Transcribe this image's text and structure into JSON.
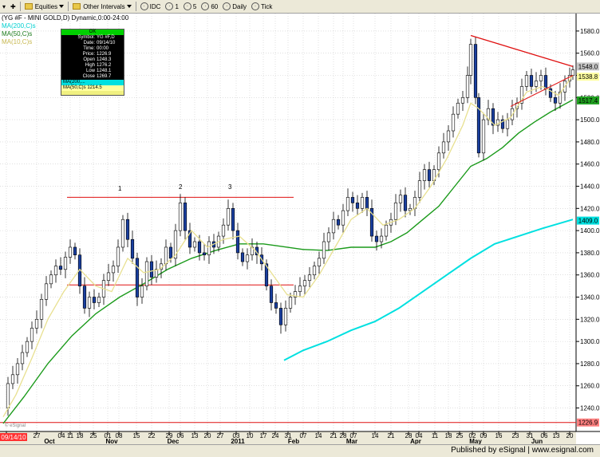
{
  "toolbar": {
    "symbol_label": "Equities",
    "interval_label": "Other Intervals",
    "buttons": [
      "IDC",
      "1",
      "5",
      "60",
      "Daily",
      "Tick"
    ]
  },
  "chart": {
    "title": "(YG #F - MINI GOLD,D) Dynamic,0:00-24:00",
    "ma_labels": [
      {
        "text": "MA(200,C)s",
        "color": "#00e0e0"
      },
      {
        "text": "MA(50,C)s",
        "color": "#1a8a1a"
      },
      {
        "text": "MA(10,C)s",
        "color": "#d8d070"
      }
    ],
    "annotations": [
      "1",
      "2",
      "3"
    ],
    "copyright": "© eSignal",
    "badges": [
      {
        "text": "1548.0",
        "value": 1548.0,
        "color": "#c8c8c8"
      },
      {
        "text": "1538.8",
        "value": 1538.8,
        "color": "#ffffa0"
      },
      {
        "text": "1517.4",
        "value": 1517.4,
        "color": "#20a020"
      },
      {
        "text": "1409.0",
        "value": 1409.0,
        "color": "#00e0e0"
      },
      {
        "text": "1226.9",
        "value": 1226.9,
        "color": "#ff8080"
      }
    ],
    "date_badge": "09/14/10"
  },
  "infobox": {
    "ok": "OK",
    "rows": [
      {
        "k": "Symbol:",
        "v": "YG #F,D"
      },
      {
        "k": "Date:",
        "v": "09/14/10"
      },
      {
        "k": "Time:",
        "v": "00:00"
      },
      {
        "k": "Price:",
        "v": "1226.9"
      },
      {
        "k": "Open",
        "v": "1248.3"
      },
      {
        "k": "High",
        "v": "1276.2"
      },
      {
        "k": "Low",
        "v": "1248.1"
      },
      {
        "k": "Close",
        "v": "1269.7"
      }
    ],
    "cyan_row": "MA(200,...",
    "yellow_row": "MA(50,C)s   1214.5"
  },
  "status": {
    "published": "Published by eSignal",
    "url": "www.esignal.com"
  },
  "chart_data": {
    "type": "candlestick",
    "y_ticks": [
      1240,
      1260,
      1280,
      1300,
      1320,
      1340,
      1360,
      1380,
      1400,
      1420,
      1440,
      1460,
      1480,
      1500,
      1520,
      1540,
      1560,
      1580
    ],
    "ylim": [
      1226,
      1590
    ],
    "x_ticks": [
      {
        "label": "20",
        "x": 8
      },
      {
        "label": "27",
        "x": 46
      },
      {
        "label": "04",
        "x": 77
      },
      {
        "label": "11",
        "x": 88
      },
      {
        "label": "18",
        "x": 100
      },
      {
        "label": "25",
        "x": 117
      },
      {
        "label": "01",
        "x": 135
      },
      {
        "label": "08",
        "x": 149
      },
      {
        "label": "15",
        "x": 171
      },
      {
        "label": "22",
        "x": 190
      },
      {
        "label": "29",
        "x": 212
      },
      {
        "label": "06",
        "x": 226
      },
      {
        "label": "13",
        "x": 244
      },
      {
        "label": "20",
        "x": 260
      },
      {
        "label": "27",
        "x": 276
      },
      {
        "label": "03",
        "x": 296
      },
      {
        "label": "10",
        "x": 313
      },
      {
        "label": "17",
        "x": 330
      },
      {
        "label": "24",
        "x": 345
      },
      {
        "label": "31",
        "x": 361
      },
      {
        "label": "07",
        "x": 380
      },
      {
        "label": "14",
        "x": 399
      },
      {
        "label": "21",
        "x": 418
      },
      {
        "label": "28",
        "x": 430
      },
      {
        "label": "07",
        "x": 443
      },
      {
        "label": "14",
        "x": 470
      },
      {
        "label": "21",
        "x": 490
      },
      {
        "label": "28",
        "x": 512
      },
      {
        "label": "04",
        "x": 525
      },
      {
        "label": "11",
        "x": 545
      },
      {
        "label": "18",
        "x": 562
      },
      {
        "label": "25",
        "x": 576
      },
      {
        "label": "02",
        "x": 592
      },
      {
        "label": "09",
        "x": 606
      },
      {
        "label": "16",
        "x": 625
      },
      {
        "label": "23",
        "x": 646
      },
      {
        "label": "31",
        "x": 664
      },
      {
        "label": "06",
        "x": 682
      },
      {
        "label": "13",
        "x": 697
      },
      {
        "label": "20",
        "x": 714
      }
    ],
    "months": [
      {
        "label": "Oct",
        "x": 62
      },
      {
        "label": "Nov",
        "x": 140
      },
      {
        "label": "Dec",
        "x": 217
      },
      {
        "label": "2011",
        "x": 298
      },
      {
        "label": "Feb",
        "x": 368
      },
      {
        "label": "Mar",
        "x": 441
      },
      {
        "label": "Apr",
        "x": 521
      },
      {
        "label": "May",
        "x": 596
      },
      {
        "label": "Jun",
        "x": 673
      }
    ],
    "price_path": [
      [
        4,
        1240
      ],
      [
        10,
        1262
      ],
      [
        16,
        1270
      ],
      [
        22,
        1280
      ],
      [
        28,
        1290
      ],
      [
        34,
        1300
      ],
      [
        40,
        1312
      ],
      [
        46,
        1320
      ],
      [
        52,
        1338
      ],
      [
        58,
        1352
      ],
      [
        64,
        1360
      ],
      [
        70,
        1368
      ],
      [
        76,
        1365
      ],
      [
        82,
        1376
      ],
      [
        88,
        1385
      ],
      [
        94,
        1378
      ],
      [
        100,
        1350
      ],
      [
        106,
        1330
      ],
      [
        112,
        1340
      ],
      [
        118,
        1335
      ],
      [
        124,
        1340
      ],
      [
        130,
        1355
      ],
      [
        136,
        1362
      ],
      [
        142,
        1368
      ],
      [
        148,
        1385
      ],
      [
        154,
        1410
      ],
      [
        160,
        1392
      ],
      [
        166,
        1375
      ],
      [
        172,
        1340
      ],
      [
        178,
        1350
      ],
      [
        184,
        1372
      ],
      [
        190,
        1358
      ],
      [
        196,
        1365
      ],
      [
        202,
        1370
      ],
      [
        208,
        1385
      ],
      [
        214,
        1375
      ],
      [
        220,
        1400
      ],
      [
        226,
        1425
      ],
      [
        232,
        1400
      ],
      [
        238,
        1385
      ],
      [
        244,
        1390
      ],
      [
        250,
        1380
      ],
      [
        256,
        1378
      ],
      [
        262,
        1390
      ],
      [
        268,
        1385
      ],
      [
        274,
        1395
      ],
      [
        280,
        1405
      ],
      [
        286,
        1420
      ],
      [
        292,
        1400
      ],
      [
        298,
        1380
      ],
      [
        304,
        1372
      ],
      [
        310,
        1378
      ],
      [
        316,
        1385
      ],
      [
        322,
        1378
      ],
      [
        328,
        1370
      ],
      [
        334,
        1350
      ],
      [
        340,
        1335
      ],
      [
        346,
        1330
      ],
      [
        352,
        1315
      ],
      [
        358,
        1330
      ],
      [
        364,
        1340
      ],
      [
        370,
        1345
      ],
      [
        376,
        1350
      ],
      [
        382,
        1355
      ],
      [
        388,
        1360
      ],
      [
        394,
        1368
      ],
      [
        400,
        1375
      ],
      [
        406,
        1390
      ],
      [
        412,
        1398
      ],
      [
        418,
        1410
      ],
      [
        424,
        1405
      ],
      [
        430,
        1418
      ],
      [
        436,
        1430
      ],
      [
        442,
        1425
      ],
      [
        448,
        1420
      ],
      [
        454,
        1430
      ],
      [
        460,
        1420
      ],
      [
        466,
        1395
      ],
      [
        472,
        1390
      ],
      [
        478,
        1395
      ],
      [
        484,
        1405
      ],
      [
        490,
        1410
      ],
      [
        496,
        1425
      ],
      [
        502,
        1432
      ],
      [
        508,
        1418
      ],
      [
        514,
        1420
      ],
      [
        520,
        1430
      ],
      [
        526,
        1445
      ],
      [
        532,
        1455
      ],
      [
        538,
        1445
      ],
      [
        544,
        1455
      ],
      [
        550,
        1470
      ],
      [
        556,
        1480
      ],
      [
        562,
        1490
      ],
      [
        568,
        1505
      ],
      [
        574,
        1515
      ],
      [
        580,
        1520
      ],
      [
        586,
        1540
      ],
      [
        590,
        1568
      ],
      [
        596,
        1520
      ],
      [
        600,
        1470
      ],
      [
        606,
        1500
      ],
      [
        612,
        1510
      ],
      [
        618,
        1495
      ],
      [
        624,
        1500
      ],
      [
        630,
        1492
      ],
      [
        636,
        1500
      ],
      [
        642,
        1510
      ],
      [
        648,
        1515
      ],
      [
        654,
        1530
      ],
      [
        660,
        1540
      ],
      [
        666,
        1530
      ],
      [
        672,
        1535
      ],
      [
        678,
        1540
      ],
      [
        684,
        1528
      ],
      [
        690,
        1520
      ],
      [
        696,
        1515
      ],
      [
        702,
        1525
      ],
      [
        708,
        1535
      ],
      [
        714,
        1540
      ],
      [
        718,
        1545
      ]
    ],
    "ma10": [
      [
        4,
        1232
      ],
      [
        20,
        1252
      ],
      [
        40,
        1285
      ],
      [
        60,
        1320
      ],
      [
        80,
        1345
      ],
      [
        100,
        1365
      ],
      [
        120,
        1350
      ],
      [
        140,
        1345
      ],
      [
        160,
        1375
      ],
      [
        180,
        1362
      ],
      [
        200,
        1365
      ],
      [
        220,
        1378
      ],
      [
        240,
        1400
      ],
      [
        260,
        1385
      ],
      [
        280,
        1392
      ],
      [
        300,
        1395
      ],
      [
        320,
        1382
      ],
      [
        340,
        1362
      ],
      [
        360,
        1342
      ],
      [
        380,
        1340
      ],
      [
        400,
        1360
      ],
      [
        420,
        1385
      ],
      [
        440,
        1410
      ],
      [
        460,
        1420
      ],
      [
        480,
        1405
      ],
      [
        500,
        1410
      ],
      [
        520,
        1420
      ],
      [
        540,
        1440
      ],
      [
        560,
        1465
      ],
      [
        580,
        1495
      ],
      [
        590,
        1515
      ],
      [
        600,
        1510
      ],
      [
        620,
        1495
      ],
      [
        640,
        1502
      ],
      [
        660,
        1525
      ],
      [
        680,
        1530
      ],
      [
        700,
        1522
      ],
      [
        718,
        1540
      ]
    ],
    "ma50": [
      [
        4,
        1226
      ],
      [
        30,
        1250
      ],
      [
        60,
        1280
      ],
      [
        90,
        1305
      ],
      [
        120,
        1325
      ],
      [
        150,
        1340
      ],
      [
        180,
        1352
      ],
      [
        210,
        1365
      ],
      [
        240,
        1375
      ],
      [
        270,
        1382
      ],
      [
        300,
        1388
      ],
      [
        330,
        1388
      ],
      [
        350,
        1386
      ],
      [
        380,
        1383
      ],
      [
        410,
        1382
      ],
      [
        440,
        1385
      ],
      [
        470,
        1385
      ],
      [
        490,
        1390
      ],
      [
        510,
        1398
      ],
      [
        530,
        1410
      ],
      [
        550,
        1422
      ],
      [
        570,
        1440
      ],
      [
        590,
        1458
      ],
      [
        610,
        1465
      ],
      [
        630,
        1475
      ],
      [
        650,
        1488
      ],
      [
        670,
        1498
      ],
      [
        690,
        1507
      ],
      [
        718,
        1518
      ]
    ],
    "ma200": [
      [
        356,
        1283
      ],
      [
        380,
        1292
      ],
      [
        410,
        1300
      ],
      [
        440,
        1310
      ],
      [
        470,
        1318
      ],
      [
        500,
        1330
      ],
      [
        530,
        1345
      ],
      [
        560,
        1360
      ],
      [
        590,
        1375
      ],
      [
        620,
        1388
      ],
      [
        650,
        1395
      ],
      [
        680,
        1402
      ],
      [
        718,
        1410
      ]
    ],
    "levels": [
      {
        "y": 1430,
        "x1": 84,
        "x2": 368,
        "color": "#e01010"
      },
      {
        "y": 1351,
        "x1": 84,
        "x2": 368,
        "color": "#e01010"
      },
      {
        "y": 1226.9,
        "x1": 0,
        "x2": 722,
        "color": "#e01010"
      }
    ],
    "trendlines": [
      {
        "x1": 590,
        "y1": 1576,
        "x2": 718,
        "y2": 1548,
        "color": "#e01010"
      }
    ],
    "support_wedge": [
      {
        "x1": 640,
        "y1": 1512,
        "x2": 718,
        "y2": 1540,
        "color": "#e01010"
      }
    ]
  }
}
